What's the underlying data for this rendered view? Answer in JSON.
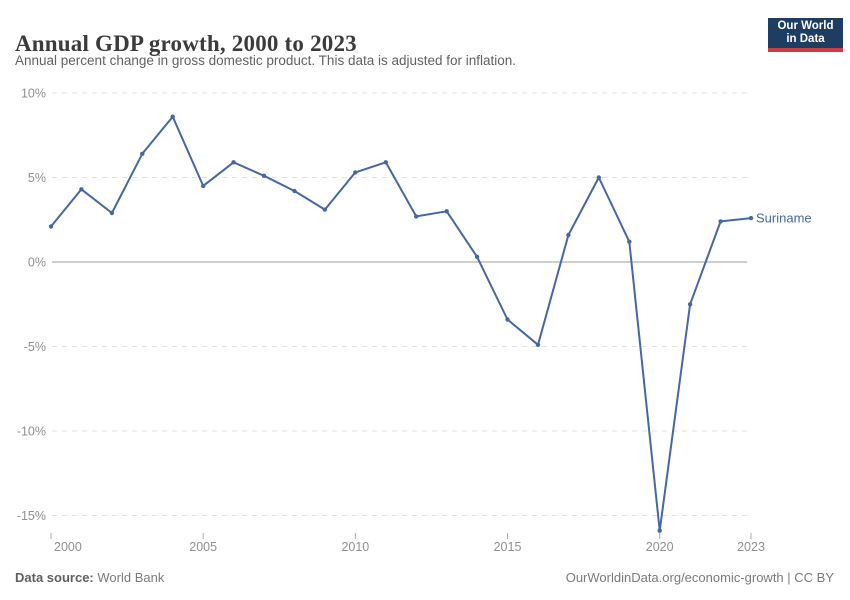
{
  "header": {
    "title": "Annual GDP growth, 2000 to 2023",
    "subtitle": "Annual percent change in gross domestic product. This data is adjusted for inflation.",
    "logo": {
      "line1": "Our World",
      "line2": "in Data"
    }
  },
  "chart_data": {
    "type": "line",
    "title": "Annual GDP growth, 2000 to 2023",
    "subtitle": "Annual percent change in gross domestic product. This data is adjusted for inflation.",
    "series": [
      {
        "name": "Suriname",
        "x": [
          2000,
          2001,
          2002,
          2003,
          2004,
          2005,
          2006,
          2007,
          2008,
          2009,
          2010,
          2011,
          2012,
          2013,
          2014,
          2015,
          2016,
          2017,
          2018,
          2019,
          2020,
          2021,
          2022,
          2023
        ],
        "values": [
          2.1,
          4.3,
          2.9,
          6.4,
          8.6,
          4.5,
          5.9,
          5.1,
          4.2,
          3.1,
          5.3,
          5.9,
          2.7,
          3.0,
          0.3,
          -3.4,
          -4.9,
          1.6,
          5.0,
          1.2,
          -15.9,
          -2.5,
          2.4,
          2.6
        ]
      }
    ],
    "xlabel": "",
    "ylabel": "",
    "xlim": [
      2000,
      2023
    ],
    "ylim": [
      -16.5,
      10
    ],
    "x_ticks": [
      2000,
      2005,
      2010,
      2015,
      2020,
      2023
    ],
    "y_ticks": [
      10,
      5,
      0,
      -5,
      -10,
      -15
    ],
    "y_tick_labels": [
      "10%",
      "5%",
      "0%",
      "-5%",
      "-10%",
      "-15%"
    ],
    "grid": "horizontal-dashed",
    "legend_position": "end-of-line-label"
  },
  "colors": {
    "line": "#4567a3",
    "entity_label": "#4567a3",
    "gridline": "#e0e0e0",
    "zero_line": "#9e9e9e",
    "axis_text": "#8f8f8f",
    "logo_bg": "#1d3d63",
    "logo_bar": "#cf3a45"
  },
  "footer": {
    "source_label": "Data source:",
    "source_value": "World Bank",
    "credit": "OurWorldinData.org/economic-growth | CC BY"
  }
}
